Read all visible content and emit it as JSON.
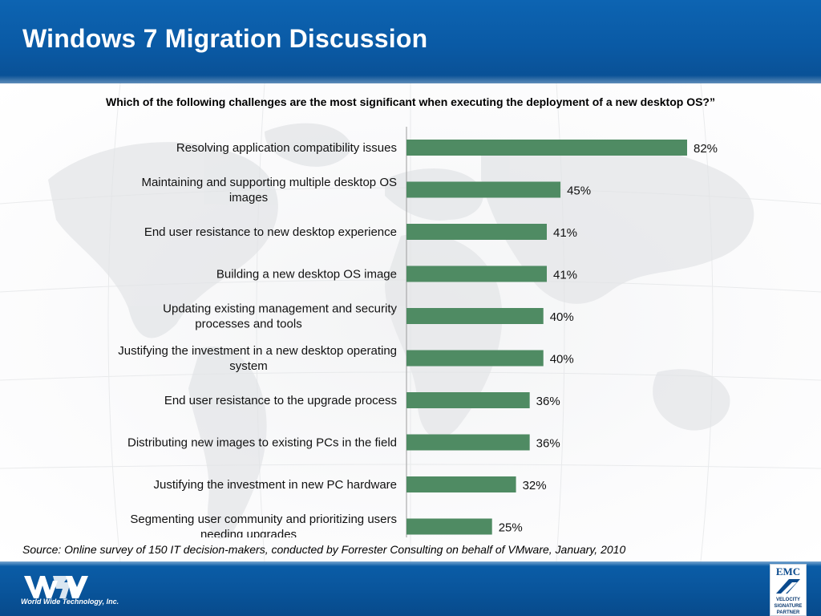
{
  "header": {
    "title": "Windows 7 Migration Discussion"
  },
  "chart_data": {
    "type": "bar",
    "orientation": "horizontal",
    "title": "Which of the following challenges are the most significant when executing the deployment of a new desktop OS?”",
    "categories": [
      [
        "Resolving application compatibility issues"
      ],
      [
        "Maintaining and supporting multiple desktop OS",
        "images"
      ],
      [
        "End user resistance to new desktop experience"
      ],
      [
        "Building a new desktop OS image"
      ],
      [
        "Updating existing management and security",
        "processes and tools"
      ],
      [
        "Justifying the investment in a new desktop operating",
        "system"
      ],
      [
        "End user resistance to the upgrade process"
      ],
      [
        "Distributing new images to existing PCs in the field"
      ],
      [
        "Justifying the investment in new PC hardware"
      ],
      [
        "Segmenting user community and prioritizing users",
        "needing upgrades"
      ]
    ],
    "values": [
      82,
      45,
      41,
      41,
      40,
      40,
      36,
      36,
      32,
      25
    ],
    "value_labels": [
      "82%",
      "45%",
      "41%",
      "41%",
      "40%",
      "40%",
      "36%",
      "36%",
      "32%",
      "25%"
    ],
    "xlim": [
      0,
      100
    ],
    "bar_color": "#4f8b63",
    "grid": false,
    "legend": "none"
  },
  "source": "Source: Online survey of 150 IT decision-makers, conducted by Forrester Consulting on behalf of VMware, January, 2010",
  "footer": {
    "company_name": "World Wide Technology, Inc.",
    "partner_badge": {
      "brand": "EMC",
      "lines": [
        "VELOCITY",
        "SIGNATURE",
        "PARTNER"
      ]
    }
  },
  "colors": {
    "header_blue": "#0a5aa5",
    "footer_blue": "#09559c",
    "bar_green": "#4f8b63"
  }
}
